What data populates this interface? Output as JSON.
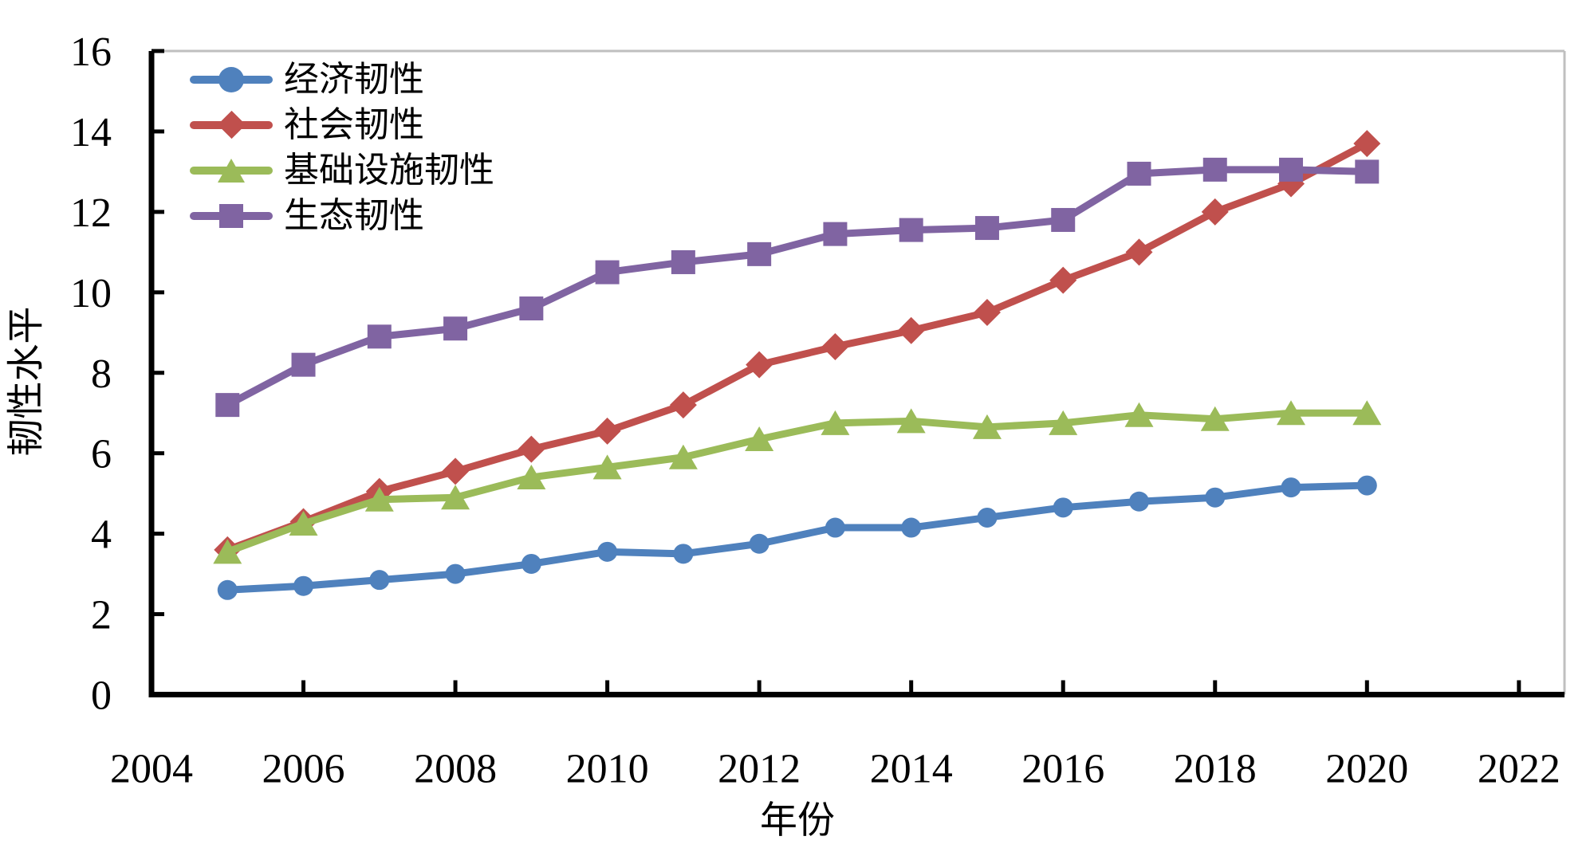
{
  "chart_data": {
    "type": "line",
    "title": "",
    "xlabel": "年份",
    "ylabel": "韧性水平",
    "x": [
      2005,
      2006,
      2007,
      2008,
      2009,
      2010,
      2011,
      2012,
      2013,
      2014,
      2015,
      2016,
      2017,
      2018,
      2019,
      2020
    ],
    "series": [
      {
        "name": "经济韧性",
        "marker": "circle",
        "color": "#4F81BD",
        "values": [
          2.6,
          2.7,
          2.85,
          3.0,
          3.25,
          3.55,
          3.5,
          3.75,
          4.15,
          4.15,
          4.4,
          4.65,
          4.8,
          4.9,
          5.15,
          5.2
        ]
      },
      {
        "name": "社会韧性",
        "marker": "diamond",
        "color": "#C0504D",
        "values": [
          3.6,
          4.3,
          5.05,
          5.55,
          6.1,
          6.55,
          7.2,
          8.2,
          8.65,
          9.05,
          9.5,
          10.3,
          11.0,
          12.0,
          12.7,
          13.7
        ]
      },
      {
        "name": "基础设施韧性",
        "marker": "triangle",
        "color": "#9BBB59",
        "values": [
          3.55,
          4.25,
          4.85,
          4.9,
          5.4,
          5.65,
          5.9,
          6.35,
          6.75,
          6.8,
          6.65,
          6.75,
          6.95,
          6.85,
          7.0,
          7.0
        ]
      },
      {
        "name": "生态韧性",
        "marker": "square",
        "color": "#8064A2",
        "values": [
          7.2,
          8.2,
          8.9,
          9.1,
          9.6,
          10.5,
          10.75,
          10.95,
          11.45,
          11.55,
          11.6,
          11.8,
          12.95,
          13.05,
          13.05,
          13.0
        ]
      }
    ],
    "xlim": [
      2004,
      2022.6
    ],
    "ylim": [
      0,
      16
    ],
    "xticks": [
      2004,
      2006,
      2008,
      2010,
      2012,
      2014,
      2016,
      2018,
      2020,
      2022
    ],
    "yticks": [
      0,
      2,
      4,
      6,
      8,
      10,
      12,
      14,
      16
    ],
    "grid": false,
    "legend_position": "top-left-inside"
  },
  "frame": {
    "background": "#FFFFFF",
    "axis_color": "#000000",
    "border_color": "#BFBFBF"
  }
}
